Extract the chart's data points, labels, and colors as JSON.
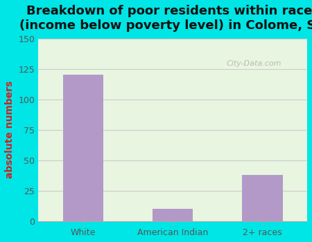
{
  "title": "Breakdown of poor residents within races\n(income below poverty level) in Colome, SD",
  "categories": [
    "White",
    "American Indian",
    "2+ races"
  ],
  "values": [
    120,
    10,
    38
  ],
  "bar_color": "#b399c8",
  "ylabel": "absolute numbers",
  "ylim": [
    0,
    150
  ],
  "yticks": [
    0,
    25,
    50,
    75,
    100,
    125,
    150
  ],
  "outer_bg_color": "#00e5e5",
  "plot_bg_color": "#e8f5e0",
  "title_fontsize": 13,
  "ylabel_fontsize": 10,
  "tick_fontsize": 9,
  "watermark": "City-Data.com"
}
